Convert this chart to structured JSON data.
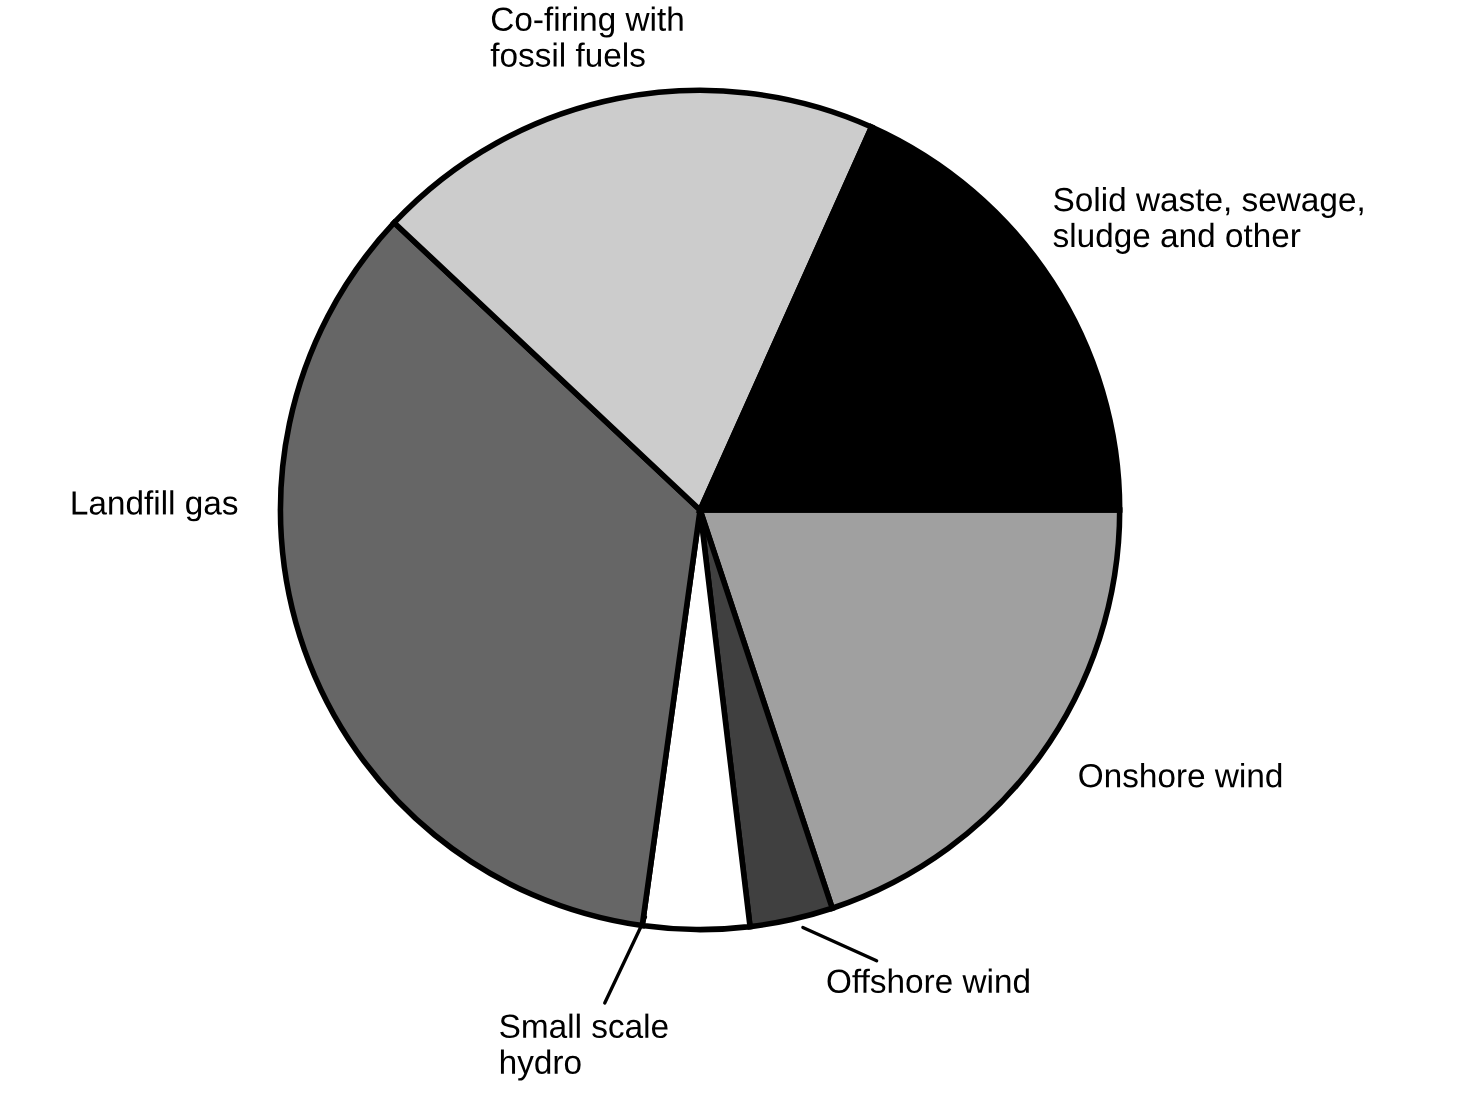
{
  "chart_data": {
    "type": "pie",
    "categories": [
      "Onshore wind",
      "Offshore wind",
      "Small scale\nhydro",
      "Landfill gas",
      "Co-firing with\nfossil fuels",
      "Solid waste, sewage,\nsludge and other"
    ],
    "values": [
      19.9,
      3.2,
      4.1,
      34.8,
      19.7,
      18.3
    ],
    "colors": [
      "#a0a0a0",
      "#404040",
      "#ffffff",
      "#666666",
      "#cccccc",
      "#000000"
    ]
  }
}
